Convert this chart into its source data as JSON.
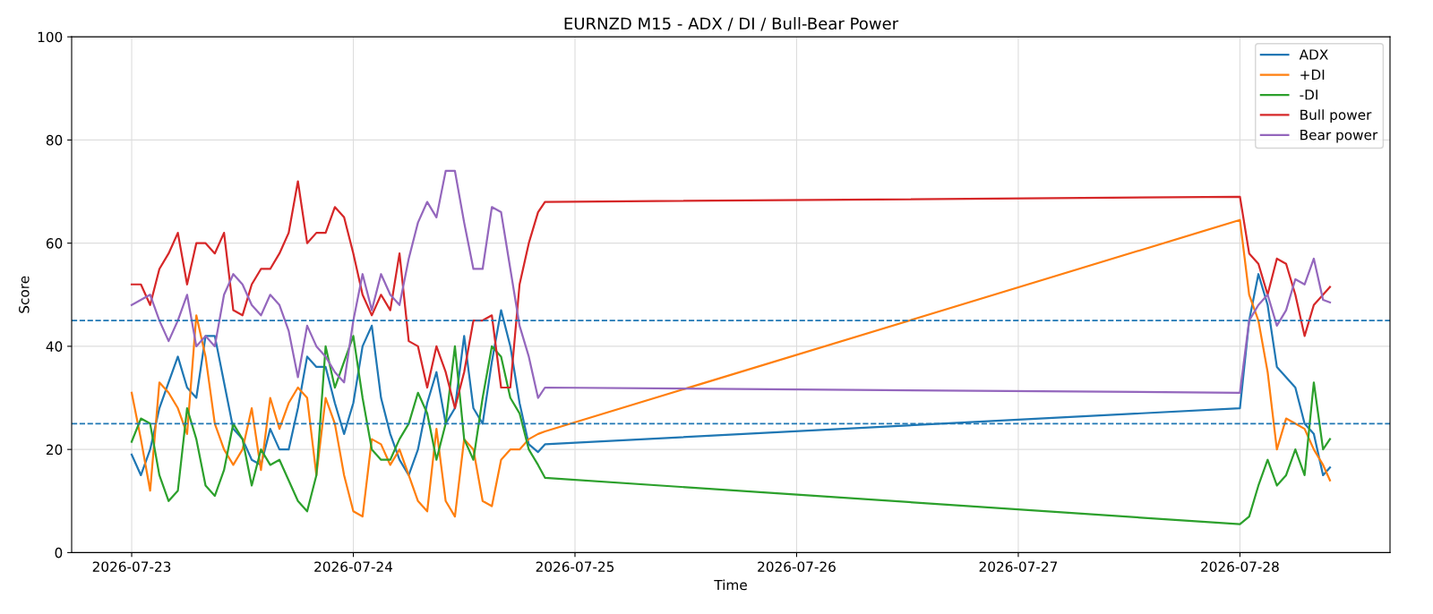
{
  "chart_data": {
    "type": "line",
    "title": "EURNZD M15 - ADX / DI / Bull-Bear Power",
    "xlabel": "Time",
    "ylabel": "Score",
    "x": [
      "2026-07-23T00:00",
      "2026-07-23T01:00",
      "2026-07-23T02:00",
      "2026-07-23T03:00",
      "2026-07-23T04:00",
      "2026-07-23T05:00",
      "2026-07-23T06:00",
      "2026-07-23T07:00",
      "2026-07-23T08:00",
      "2026-07-23T09:00",
      "2026-07-23T10:00",
      "2026-07-23T11:00",
      "2026-07-23T12:00",
      "2026-07-23T13:00",
      "2026-07-23T14:00",
      "2026-07-23T15:00",
      "2026-07-23T16:00",
      "2026-07-23T17:00",
      "2026-07-23T18:00",
      "2026-07-23T19:00",
      "2026-07-23T20:00",
      "2026-07-23T21:00",
      "2026-07-23T22:00",
      "2026-07-23T23:00",
      "2026-07-24T00:00",
      "2026-07-24T01:00",
      "2026-07-24T02:00",
      "2026-07-24T03:00",
      "2026-07-24T04:00",
      "2026-07-24T05:00",
      "2026-07-24T06:00",
      "2026-07-24T07:00",
      "2026-07-24T08:00",
      "2026-07-24T09:00",
      "2026-07-24T10:00",
      "2026-07-24T11:00",
      "2026-07-24T12:00",
      "2026-07-24T13:00",
      "2026-07-24T14:00",
      "2026-07-24T15:00",
      "2026-07-24T16:00",
      "2026-07-24T17:00",
      "2026-07-24T18:00",
      "2026-07-24T19:00",
      "2026-07-24T20:00",
      "2026-07-24T20:45",
      "2026-07-28T00:00",
      "2026-07-28T01:00",
      "2026-07-28T02:00",
      "2026-07-28T03:00",
      "2026-07-28T04:00",
      "2026-07-28T05:00",
      "2026-07-28T06:00",
      "2026-07-28T07:00",
      "2026-07-28T08:00",
      "2026-07-28T09:00",
      "2026-07-28T09:45"
    ],
    "series": [
      {
        "name": "ADX",
        "color": "#1f77b4",
        "values": [
          19,
          15,
          20,
          28,
          33,
          38,
          32,
          30,
          42,
          42,
          33,
          24,
          22,
          18,
          17,
          24,
          20,
          20,
          28,
          38,
          36,
          36,
          29,
          23,
          29,
          40,
          44,
          30,
          23,
          18,
          15,
          20,
          29,
          35,
          25,
          28,
          42,
          28,
          25,
          37,
          47,
          40,
          29,
          21,
          19.5,
          21,
          28,
          45,
          54,
          48,
          36,
          34,
          32,
          25,
          23,
          15,
          16.5
        ]
      },
      {
        "name": "+DI",
        "color": "#ff7f0e",
        "values": [
          31,
          22,
          12,
          33,
          31,
          28,
          23,
          46,
          38,
          25,
          20,
          17,
          20,
          28,
          16,
          30,
          24,
          29,
          32,
          30,
          15,
          30,
          25,
          15,
          8,
          7,
          22,
          21,
          17,
          20,
          15,
          10,
          8,
          24,
          10,
          7,
          22,
          20,
          10,
          9,
          18,
          20,
          20,
          22,
          23,
          23.5,
          64.5,
          50,
          45,
          35,
          20,
          26,
          25,
          24,
          20,
          17,
          14
        ]
      },
      {
        "name": "-DI",
        "color": "#2ca02c",
        "values": [
          21.5,
          26,
          25,
          15,
          10,
          12,
          28,
          22,
          13,
          11,
          16,
          25,
          22,
          13,
          20,
          17,
          18,
          14,
          10,
          8,
          15,
          40,
          32,
          37,
          42,
          30,
          20,
          18,
          18,
          22,
          25,
          31,
          27,
          18,
          25,
          40,
          22,
          18,
          30,
          40,
          38,
          30,
          27,
          20,
          17,
          14.5,
          5.5,
          7,
          13,
          18,
          13,
          15,
          20,
          15,
          33,
          20,
          22
        ]
      },
      {
        "name": "Bull power",
        "color": "#d62728",
        "values": [
          52,
          52,
          48,
          55,
          58,
          62,
          52,
          60,
          60,
          58,
          62,
          47,
          46,
          52,
          55,
          55,
          58,
          62,
          72,
          60,
          62,
          62,
          67,
          65,
          58,
          50,
          46,
          50,
          47,
          58,
          41,
          40,
          32,
          40,
          35,
          28,
          35,
          45,
          45,
          46,
          32,
          32,
          52,
          60,
          66,
          68,
          69,
          58,
          56,
          50,
          57,
          56,
          50,
          42,
          48,
          50,
          51.5
        ]
      },
      {
        "name": "Bear power",
        "color": "#9467bd",
        "values": [
          48,
          49,
          50,
          45,
          41,
          45,
          50,
          40,
          42,
          40,
          50,
          54,
          52,
          48,
          46,
          50,
          48,
          43,
          34,
          44,
          40,
          38,
          35,
          33,
          45,
          54,
          47,
          54,
          50,
          48,
          57,
          64,
          68,
          65,
          74,
          74,
          64,
          55,
          55,
          67,
          66,
          55,
          44,
          38,
          30,
          32,
          31,
          45,
          48,
          50,
          44,
          47,
          53,
          52,
          57,
          49,
          48.5
        ]
      }
    ],
    "xlim": [
      "2026-07-22T17:30",
      "2026-07-28T16:15"
    ],
    "xticks": [
      "2026-07-23",
      "2026-07-24",
      "2026-07-25",
      "2026-07-26",
      "2026-07-27",
      "2026-07-28"
    ],
    "ylim": [
      0,
      100
    ],
    "yticks": [
      0,
      20,
      40,
      60,
      80,
      100
    ],
    "ref_lines": [
      {
        "axis": "y",
        "value": 45,
        "color": "#1f77b4",
        "line_style": "dashed"
      },
      {
        "axis": "y",
        "value": 25,
        "color": "#1f77b4",
        "line_style": "dashed"
      }
    ],
    "grid": true,
    "legend": "top right",
    "line_style": "solid",
    "marker": "none"
  }
}
